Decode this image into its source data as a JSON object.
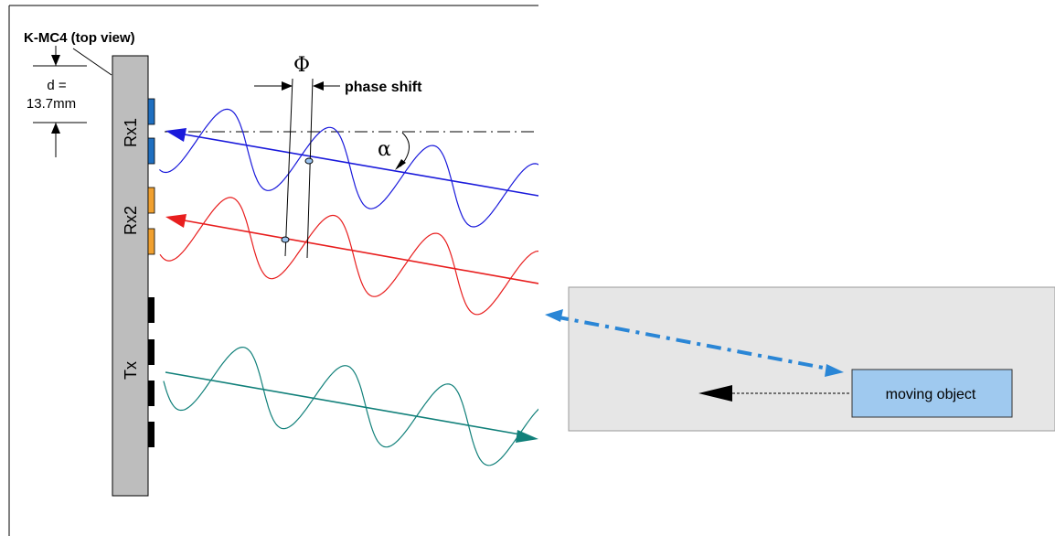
{
  "module": {
    "title": "K-MC4 (top view)",
    "spacing_label_line1": "d =",
    "spacing_label_line2": "13.7mm",
    "rx1_label": "Rx1",
    "rx2_label": "Rx2",
    "tx_label": "Tx"
  },
  "annotations": {
    "phase_symbol": "Φ",
    "phase_shift_label": "phase shift",
    "angle_symbol": "α"
  },
  "scene": {
    "object_label": "moving object"
  },
  "colors": {
    "module_fill": "#bdbdbd",
    "rx1_wave": "#1a1adb",
    "rx2_wave": "#e81e1e",
    "tx_wave": "#11807a",
    "rx1_pads": "#1f6fc0",
    "rx2_pads": "#f0a030",
    "tx_pads": "#000000",
    "road_fill": "#e6e6e6",
    "object_fill": "#9fc9ef",
    "reflection_arrow": "#2a86d6"
  }
}
